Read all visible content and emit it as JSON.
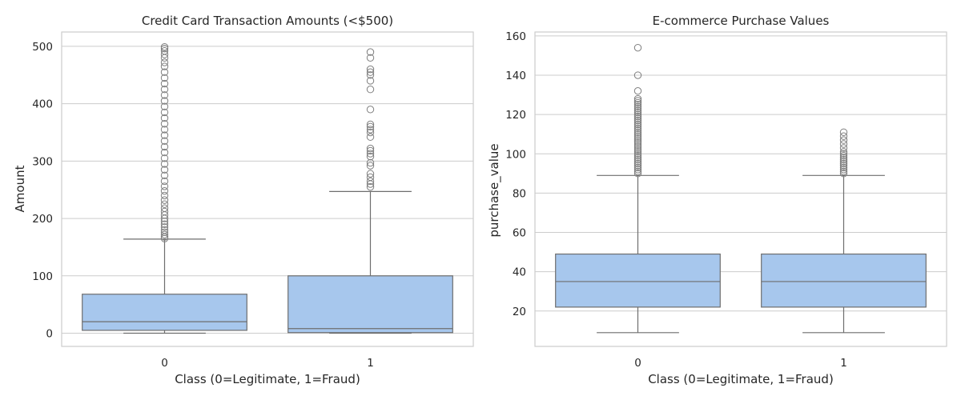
{
  "colors": {
    "box_fill": "#a7c7ed",
    "line": "#6e6e6e",
    "grid": "#cccccc",
    "frame": "#cccccc",
    "outlier": "#7f7f7f"
  },
  "chart_data": [
    {
      "type": "box",
      "title": "Credit Card Transaction Amounts (<$500)",
      "xlabel": "Class (0=Legitimate, 1=Fraud)",
      "ylabel": "Amount",
      "ylim": [
        -23,
        525
      ],
      "yticks": [
        0,
        100,
        200,
        300,
        400,
        500
      ],
      "grid": true,
      "categories": [
        "0",
        "1"
      ],
      "boxes": [
        {
          "category": "0",
          "whisker_low": 0,
          "q1": 5,
          "median": 20,
          "q3": 68,
          "whisker_high": 164,
          "outliers": [
            165,
            168,
            172,
            176,
            180,
            185,
            190,
            195,
            200,
            206,
            212,
            218,
            225,
            232,
            240,
            248,
            256,
            265,
            275,
            285,
            295,
            305,
            315,
            325,
            335,
            345,
            355,
            365,
            375,
            385,
            395,
            405,
            415,
            425,
            435,
            445,
            455,
            465,
            472,
            480,
            486,
            492,
            496,
            499
          ]
        },
        {
          "category": "1",
          "whisker_low": 0,
          "q1": 1,
          "median": 8,
          "q3": 100,
          "whisker_high": 247,
          "outliers": [
            255,
            260,
            265,
            272,
            278,
            292,
            297,
            308,
            313,
            318,
            322,
            342,
            350,
            355,
            360,
            364,
            390,
            425,
            440,
            450,
            455,
            460,
            480,
            490
          ]
        }
      ]
    },
    {
      "type": "box",
      "title": "E-commerce Purchase Values",
      "xlabel": "Class (0=Legitimate, 1=Fraud)",
      "ylabel": "purchase_value",
      "ylim": [
        2,
        162
      ],
      "yticks": [
        20,
        40,
        60,
        80,
        100,
        120,
        140,
        160
      ],
      "grid": true,
      "categories": [
        "0",
        "1"
      ],
      "boxes": [
        {
          "category": "0",
          "whisker_low": 9,
          "q1": 22,
          "median": 35,
          "q3": 49,
          "whisker_high": 89,
          "outliers": [
            90,
            91,
            92,
            93,
            94,
            95,
            96,
            97,
            98,
            99,
            100,
            101,
            102,
            103,
            104,
            105,
            106,
            107,
            108,
            109,
            110,
            111,
            112,
            113,
            114,
            115,
            116,
            117,
            118,
            119,
            120,
            121,
            122,
            123,
            124,
            125,
            126,
            127,
            128,
            132,
            140,
            154
          ]
        },
        {
          "category": "1",
          "whisker_low": 9,
          "q1": 22,
          "median": 35,
          "q3": 49,
          "whisker_high": 89,
          "outliers": [
            90,
            91,
            92,
            93,
            94,
            95,
            96,
            97,
            98,
            99,
            100,
            101,
            103,
            105,
            107,
            109,
            111
          ]
        }
      ]
    }
  ]
}
